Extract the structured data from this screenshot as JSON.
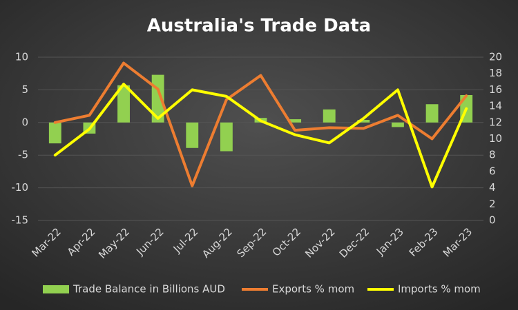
{
  "chart_data": {
    "type": "bar-line",
    "title": "Australia's Trade Data",
    "categories": [
      "Mar-22",
      "Apr-22",
      "May-22",
      "Jun-22",
      "Jul-22",
      "Aug-22",
      "Sep-22",
      "Oct-22",
      "Nov-22",
      "Dec-22",
      "Jan-23",
      "Feb-23",
      "Mar-23"
    ],
    "series": [
      {
        "name": "Trade Balance in Billions AUD",
        "color": "#92d050",
        "kind": "bar",
        "values": [
          -3.2,
          -1.7,
          5.7,
          7.3,
          -3.9,
          -4.4,
          0.7,
          0.5,
          2.0,
          0.4,
          -0.7,
          2.8,
          4.2
        ]
      },
      {
        "name": "Exports % mom",
        "color": "#ed7d31",
        "kind": "line",
        "values": [
          0,
          1.1,
          9.1,
          5.1,
          -9.7,
          3.5,
          7.2,
          -1.2,
          -0.8,
          -0.9,
          1.1,
          -2.5,
          4.1
        ]
      },
      {
        "name": "Imports % mom",
        "color": "#ffff00",
        "kind": "line",
        "axis": "y2",
        "values": [
          8.0,
          11.2,
          16.7,
          12.5,
          16.0,
          15.2,
          12.2,
          10.5,
          9.5,
          12.5,
          16.0,
          4.1,
          13.7
        ]
      }
    ],
    "ylim": [
      -15,
      10
    ],
    "yticks": [
      -15,
      -10,
      -5,
      0,
      5,
      10
    ],
    "y2lim": [
      0,
      20
    ],
    "y2ticks": [
      0,
      2,
      4,
      6,
      8,
      10,
      12,
      14,
      16,
      18,
      20
    ],
    "grid": true,
    "legend": "bottom"
  }
}
